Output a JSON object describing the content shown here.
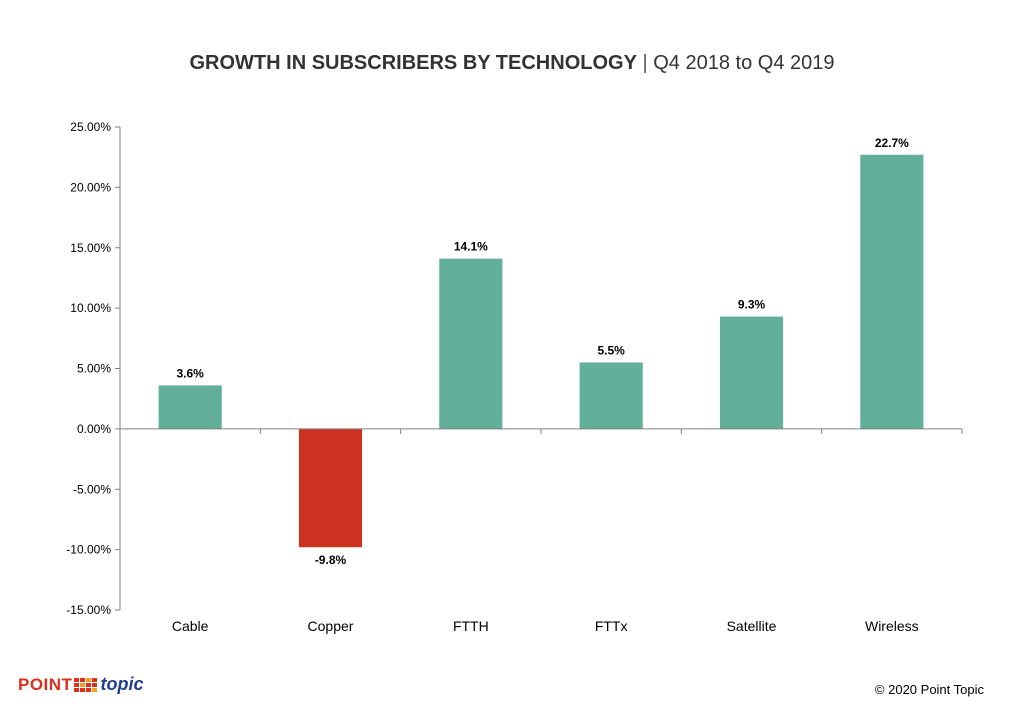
{
  "header": {
    "title_main": "GROWTH IN SUBSCRIBERS BY TECHNOLOGY",
    "title_separator": "|",
    "title_sub": "Q4 2018 to Q4 2019"
  },
  "chart_data": {
    "type": "bar",
    "title": "GROWTH IN SUBSCRIBERS BY TECHNOLOGY | Q4 2018 to Q4 2019",
    "categories": [
      "Cable",
      "Copper",
      "FTTH",
      "FTTx",
      "Satellite",
      "Wireless"
    ],
    "values": [
      3.6,
      -9.8,
      14.1,
      5.5,
      9.3,
      22.7
    ],
    "data_labels": [
      "3.6%",
      "-9.8%",
      "14.1%",
      "5.5%",
      "9.3%",
      "22.7%"
    ],
    "ylim": [
      -15,
      25
    ],
    "yticks": [
      25,
      20,
      15,
      10,
      5,
      0,
      -5,
      -10,
      -15
    ],
    "ytick_labels": [
      "25.00%",
      "20.00%",
      "15.00%",
      "10.00%",
      "5.00%",
      "0.00%",
      "-5.00%",
      "-10.00%",
      "-15.00%"
    ],
    "xlabel": "",
    "ylabel": "",
    "grid": false,
    "colors": {
      "positive": "#62b09a",
      "negative": "#cb3320"
    }
  },
  "footer": {
    "logo_point": "POINT",
    "logo_topic": "topic",
    "copyright": "© 2020 Point Topic"
  }
}
